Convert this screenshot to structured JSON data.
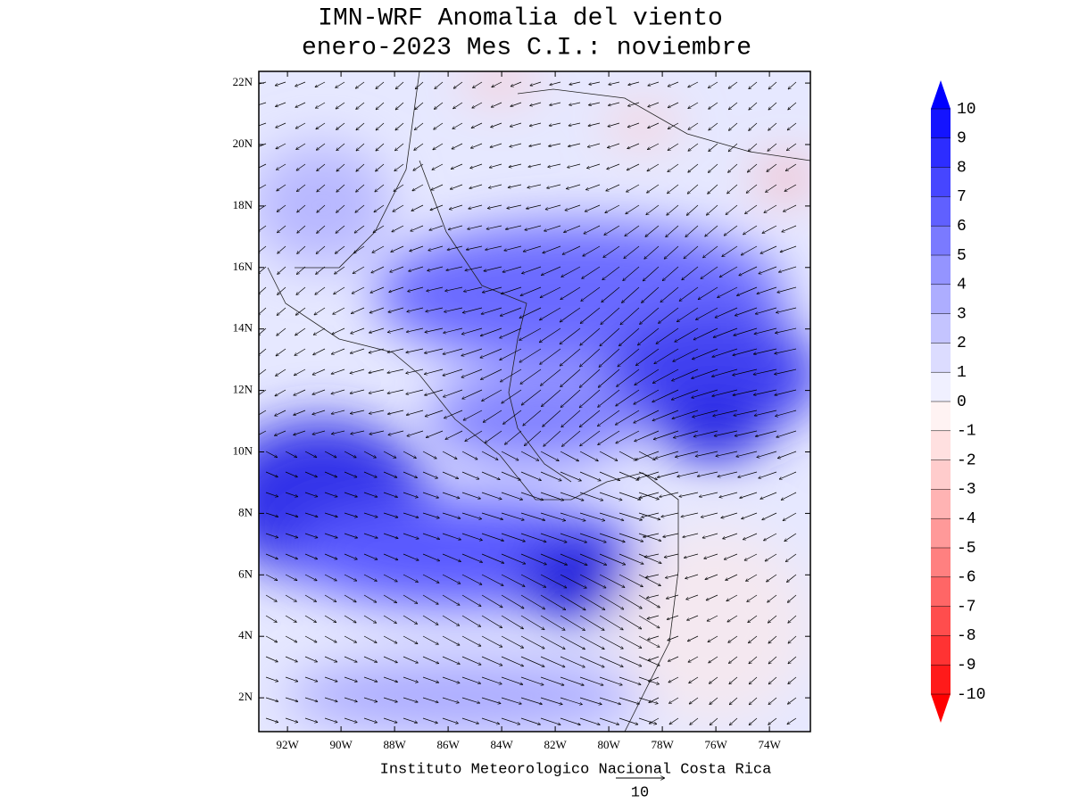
{
  "map": {
    "title": [
      "IMN-WRF Anomalia del viento",
      "enero-2023 Mes C.I.: noviembre"
    ],
    "footer": "Instituto Meteorologico Nacional Costa Rica",
    "reference_vector": 10,
    "xlim": [
      -93.07,
      -72.47
    ],
    "ylim": [
      0.9,
      22.38
    ],
    "xticks": [
      {
        "value": -92,
        "label": "92W"
      },
      {
        "value": -90,
        "label": "90W"
      },
      {
        "value": -88,
        "label": "88W"
      },
      {
        "value": -86,
        "label": "86W"
      },
      {
        "value": -84,
        "label": "84W"
      },
      {
        "value": -82,
        "label": "82W"
      },
      {
        "value": -80,
        "label": "80W"
      },
      {
        "value": -78,
        "label": "78W"
      },
      {
        "value": -76,
        "label": "76W"
      },
      {
        "value": -74,
        "label": "74W"
      }
    ],
    "yticks": [
      {
        "value": 2,
        "label": "2N"
      },
      {
        "value": 4,
        "label": "4N"
      },
      {
        "value": 6,
        "label": "6N"
      },
      {
        "value": 8,
        "label": "8N"
      },
      {
        "value": 10,
        "label": "10N"
      },
      {
        "value": 12,
        "label": "12N"
      },
      {
        "value": 14,
        "label": "14N"
      },
      {
        "value": 16,
        "label": "16N"
      },
      {
        "value": 18,
        "label": "18N"
      },
      {
        "value": 20,
        "label": "20N"
      },
      {
        "value": 22,
        "label": "22N"
      }
    ],
    "colorbar": {
      "ticks": [
        -10,
        -9,
        -8,
        -7,
        -6,
        -5,
        -4,
        -3,
        -2,
        -1,
        0,
        1,
        2,
        3,
        4,
        5,
        6,
        7,
        8,
        9,
        10
      ],
      "colors": [
        "#ff1a1a",
        "#ff3333",
        "#ff4d4d",
        "#ff6666",
        "#ff8080",
        "#ff9999",
        "#ffb3b3",
        "#ffcccc",
        "#ffe0e0",
        "#fff3f3",
        "#f0f0ff",
        "#dcdcff",
        "#c4c4ff",
        "#adadff",
        "#9494ff",
        "#7a7aff",
        "#6060ff",
        "#4646ff",
        "#2d2dff",
        "#1414ff"
      ],
      "extend_colors": [
        "#ff0000",
        "#0000ff"
      ]
    }
  }
}
